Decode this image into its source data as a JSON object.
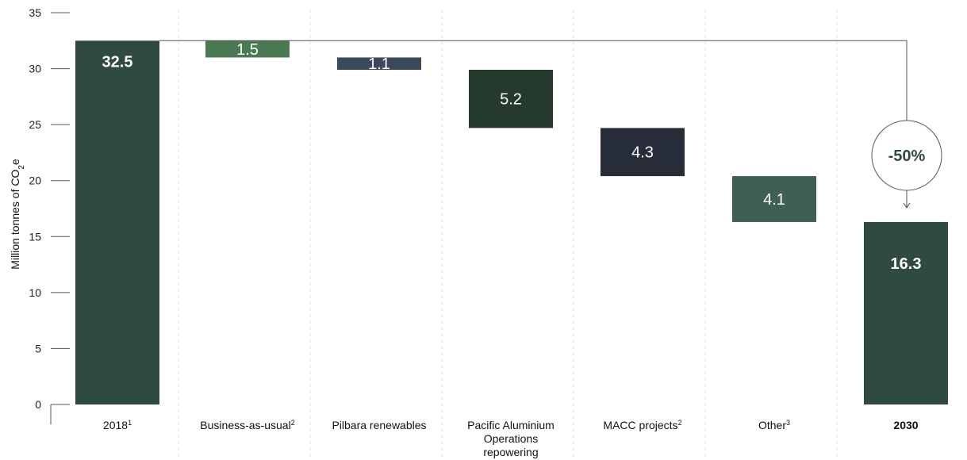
{
  "chart_data": {
    "type": "bar",
    "subtype": "waterfall",
    "ylabel": "Million tonnes of CO",
    "ylabel_sub": "2",
    "ylabel_tail": "e",
    "ylim": [
      0,
      35
    ],
    "yticks": [
      0,
      5,
      10,
      15,
      20,
      25,
      30,
      35
    ],
    "grid": false,
    "categories": [
      {
        "label": "2018",
        "sup": "1"
      },
      {
        "label": "Business-as-usual",
        "sup": "2"
      },
      {
        "label": "Pilbara renewables",
        "sup": ""
      },
      {
        "label": "Pacific Aluminium Operations repowering",
        "sup": ""
      },
      {
        "label": "MACC projects",
        "sup": "2"
      },
      {
        "label": "Other",
        "sup": "3"
      },
      {
        "label": "2030",
        "sup": "",
        "bold": true
      }
    ],
    "bars": [
      {
        "kind": "total",
        "value": 32.5,
        "label": "32.5",
        "color": "#2f4a3f"
      },
      {
        "kind": "decrease",
        "value": 1.5,
        "label": "1.5",
        "color": "#4a7a52"
      },
      {
        "kind": "decrease",
        "value": 1.1,
        "label": "1.1",
        "color": "#3b4a5a"
      },
      {
        "kind": "decrease",
        "value": 5.2,
        "label": "5.2",
        "color": "#253a2c"
      },
      {
        "kind": "decrease",
        "value": 4.3,
        "label": "4.3",
        "color": "#262d38"
      },
      {
        "kind": "decrease",
        "value": 4.1,
        "label": "4.1",
        "color": "#3f5e54"
      },
      {
        "kind": "total",
        "value": 16.3,
        "label": "16.3",
        "color": "#2f4a3f"
      }
    ],
    "annotation": {
      "text": "-50%",
      "from": 32.5,
      "to": 16.3
    }
  }
}
